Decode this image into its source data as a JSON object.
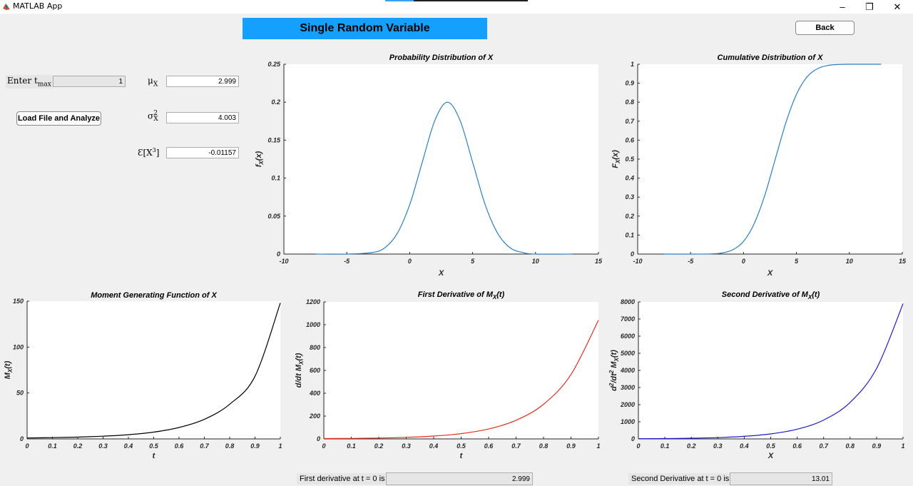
{
  "window": {
    "title": "MATLAB App",
    "minimize": "–",
    "restore": "❐",
    "close": "✕"
  },
  "header": {
    "title": "Single Random Variable",
    "back_label": "Back"
  },
  "inputs": {
    "tmax_label_prefix": "Enter",
    "tmax_label_t": "t",
    "tmax_label_sub": "max",
    "tmax_value": "1",
    "load_button": "Load File and Analyze"
  },
  "stats": {
    "mu_symbol": "μ",
    "mu_sub": "X",
    "mu_value": "2.999",
    "var_symbol": "σ",
    "var_sup": "2",
    "var_sub": "X",
    "var_value": "4.003",
    "e3_symbol": "Ɛ[X",
    "e3_sup": "3",
    "e3_close": "]",
    "e3_value": "-0.01157"
  },
  "bottom": {
    "first_label": "First derivative at t = 0 is",
    "first_value": "2.999",
    "second_label": "Second Derivative at t = 0 is",
    "second_value": "13.01"
  },
  "chart_data": [
    {
      "id": "pdf",
      "type": "line",
      "title": "Probability Distribution of X",
      "xlabel": "X",
      "ylabel_main": "f",
      "ylabel_sub": "X",
      "ylabel_tail": "(x)",
      "xlim": [
        -10,
        15
      ],
      "ylim": [
        0,
        0.25
      ],
      "xticks": [
        "-10",
        "-5",
        "0",
        "5",
        "10",
        "15"
      ],
      "yticks": [
        "0",
        "0.05",
        "0.1",
        "0.15",
        "0.2",
        "0.25"
      ],
      "color": "#2a7fc3",
      "series": [
        {
          "x": [
            -7.5,
            -5,
            -3,
            -2,
            -1,
            0,
            1,
            2,
            3,
            4,
            5,
            6,
            7,
            8,
            9,
            10,
            13
          ],
          "y": [
            0,
            0,
            0.002,
            0.008,
            0.027,
            0.065,
            0.121,
            0.176,
            0.2,
            0.176,
            0.121,
            0.065,
            0.027,
            0.008,
            0.002,
            0,
            0
          ]
        }
      ]
    },
    {
      "id": "cdf",
      "type": "line",
      "title": "Cumulative Distribution of X",
      "xlabel": "X",
      "ylabel_main": "F",
      "ylabel_sub": "X",
      "ylabel_tail": "(x)",
      "xlim": [
        -10,
        15
      ],
      "ylim": [
        0,
        1
      ],
      "xticks": [
        "-10",
        "-5",
        "0",
        "5",
        "10",
        "15"
      ],
      "yticks": [
        "0",
        "0.1",
        "0.2",
        "0.3",
        "0.4",
        "0.5",
        "0.6",
        "0.7",
        "0.8",
        "0.9",
        "1"
      ],
      "color": "#2a7fc3",
      "series": [
        {
          "x": [
            -7.5,
            -5,
            -3,
            -2,
            -1,
            0,
            1,
            2,
            3,
            4,
            5,
            6,
            7,
            8,
            9,
            10,
            13
          ],
          "y": [
            0,
            0,
            0.001,
            0.006,
            0.023,
            0.067,
            0.159,
            0.308,
            0.5,
            0.692,
            0.841,
            0.933,
            0.977,
            0.994,
            0.999,
            1,
            1
          ]
        }
      ]
    },
    {
      "id": "mgf",
      "type": "line",
      "title": "Moment Generating Function of X",
      "xlabel": "t",
      "ylabel_main": "M",
      "ylabel_sub": "X",
      "ylabel_tail": "(t)",
      "xlim": [
        0,
        1
      ],
      "ylim": [
        0,
        150
      ],
      "xticks": [
        "0",
        "0.1",
        "0.2",
        "0.3",
        "0.4",
        "0.5",
        "0.6",
        "0.7",
        "0.8",
        "0.9",
        "1"
      ],
      "yticks": [
        "0",
        "50",
        "100",
        "150"
      ],
      "color": "#000000",
      "series": [
        {
          "x": [
            0,
            0.1,
            0.2,
            0.3,
            0.4,
            0.5,
            0.6,
            0.7,
            0.8,
            0.9,
            1
          ],
          "y": [
            1,
            1.37,
            1.98,
            2.96,
            4.58,
            7.4,
            12.4,
            21.3,
            37.8,
            68.2,
            148
          ]
        }
      ]
    },
    {
      "id": "d1",
      "type": "line",
      "title": "First  Derivative  of  M",
      "title_sub": "X",
      "title_tail": "(t)",
      "xlabel": "t",
      "ylabel_main": "d/dt  M",
      "ylabel_sub": "X",
      "ylabel_tail": "(t)",
      "xlim": [
        0,
        1
      ],
      "ylim": [
        0,
        1200
      ],
      "xticks": [
        "0",
        "0.1",
        "0.2",
        "0.3",
        "0.4",
        "0.5",
        "0.6",
        "0.7",
        "0.8",
        "0.9",
        "1"
      ],
      "yticks": [
        "0",
        "200",
        "400",
        "600",
        "800",
        "1000",
        "1200"
      ],
      "color": "#e0301e",
      "series": [
        {
          "x": [
            0,
            0.1,
            0.2,
            0.3,
            0.4,
            0.5,
            0.6,
            0.7,
            0.8,
            0.9,
            1
          ],
          "y": [
            3,
            4.5,
            7.8,
            13.6,
            24.7,
            46,
            87,
            163,
            303,
            564,
            1040
          ]
        }
      ]
    },
    {
      "id": "d2",
      "type": "line",
      "title": "Second  Derivative  of  M",
      "title_sub": "X",
      "title_tail": "(t)",
      "xlabel": "X",
      "ylabel_main": "d",
      "ylabel_sup": "2",
      "ylabel_mid": "/dt",
      "ylabel_sup2": "2",
      "ylabel_sub": "X",
      "ylabel_pre_sub": "  M",
      "ylabel_tail": "(t)",
      "xlim": [
        0,
        1
      ],
      "ylim": [
        0,
        8000
      ],
      "xticks": [
        "0",
        "0.1",
        "0.2",
        "0.3",
        "0.4",
        "0.5",
        "0.6",
        "0.7",
        "0.8",
        "0.9",
        "1"
      ],
      "yticks": [
        "0",
        "1000",
        "2000",
        "3000",
        "4000",
        "5000",
        "6000",
        "7000",
        "8000"
      ],
      "color": "#1b1bcf",
      "series": [
        {
          "x": [
            0,
            0.1,
            0.2,
            0.3,
            0.4,
            0.5,
            0.6,
            0.7,
            0.8,
            0.9,
            1
          ],
          "y": [
            13,
            22,
            40,
            77,
            150,
            292,
            566,
            1100,
            2130,
            4110,
            7890
          ]
        }
      ]
    }
  ]
}
